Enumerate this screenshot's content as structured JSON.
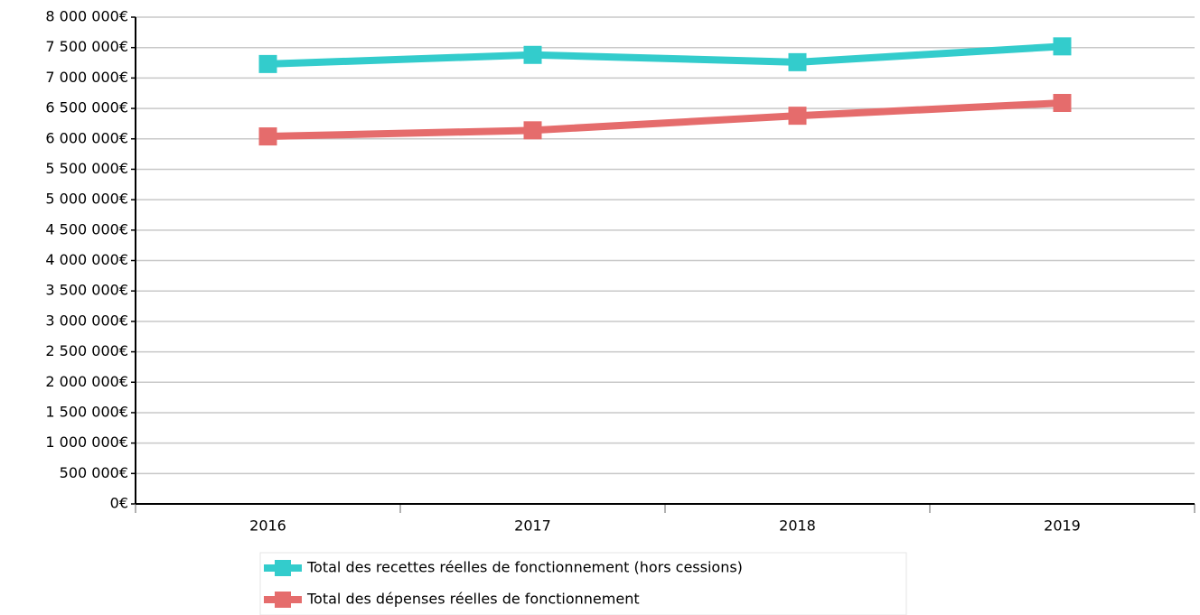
{
  "chart_data": {
    "type": "line",
    "categories": [
      "2016",
      "2017",
      "2018",
      "2019"
    ],
    "series": [
      {
        "name": "Total des recettes réelles de fonctionnement (hors cessions)",
        "color": "#33cccc",
        "values": [
          7230000,
          7380000,
          7260000,
          7520000
        ]
      },
      {
        "name": "Total des dépenses réelles de fonctionnement",
        "color": "#e56c6c",
        "values": [
          6040000,
          6140000,
          6380000,
          6590000
        ]
      }
    ],
    "ylim": [
      0,
      8000000
    ],
    "yticks": [
      {
        "value": 0,
        "label": "0€"
      },
      {
        "value": 500000,
        "label": "500 000€"
      },
      {
        "value": 1000000,
        "label": "1 000 000€"
      },
      {
        "value": 1500000,
        "label": "1 500 000€"
      },
      {
        "value": 2000000,
        "label": "2 000 000€"
      },
      {
        "value": 2500000,
        "label": "2 500 000€"
      },
      {
        "value": 3000000,
        "label": "3 000 000€"
      },
      {
        "value": 3500000,
        "label": "3 500 000€"
      },
      {
        "value": 4000000,
        "label": "4 000 000€"
      },
      {
        "value": 4500000,
        "label": "4 500 000€"
      },
      {
        "value": 5000000,
        "label": "5 000 000€"
      },
      {
        "value": 5500000,
        "label": "5 500 000€"
      },
      {
        "value": 6000000,
        "label": "6 000 000€"
      },
      {
        "value": 6500000,
        "label": "6 500 000€"
      },
      {
        "value": 7000000,
        "label": "7 000 000€"
      },
      {
        "value": 7500000,
        "label": "7 500 000€"
      },
      {
        "value": 8000000,
        "label": "8 000 000€"
      }
    ],
    "grid": true,
    "legend": "bottom"
  }
}
